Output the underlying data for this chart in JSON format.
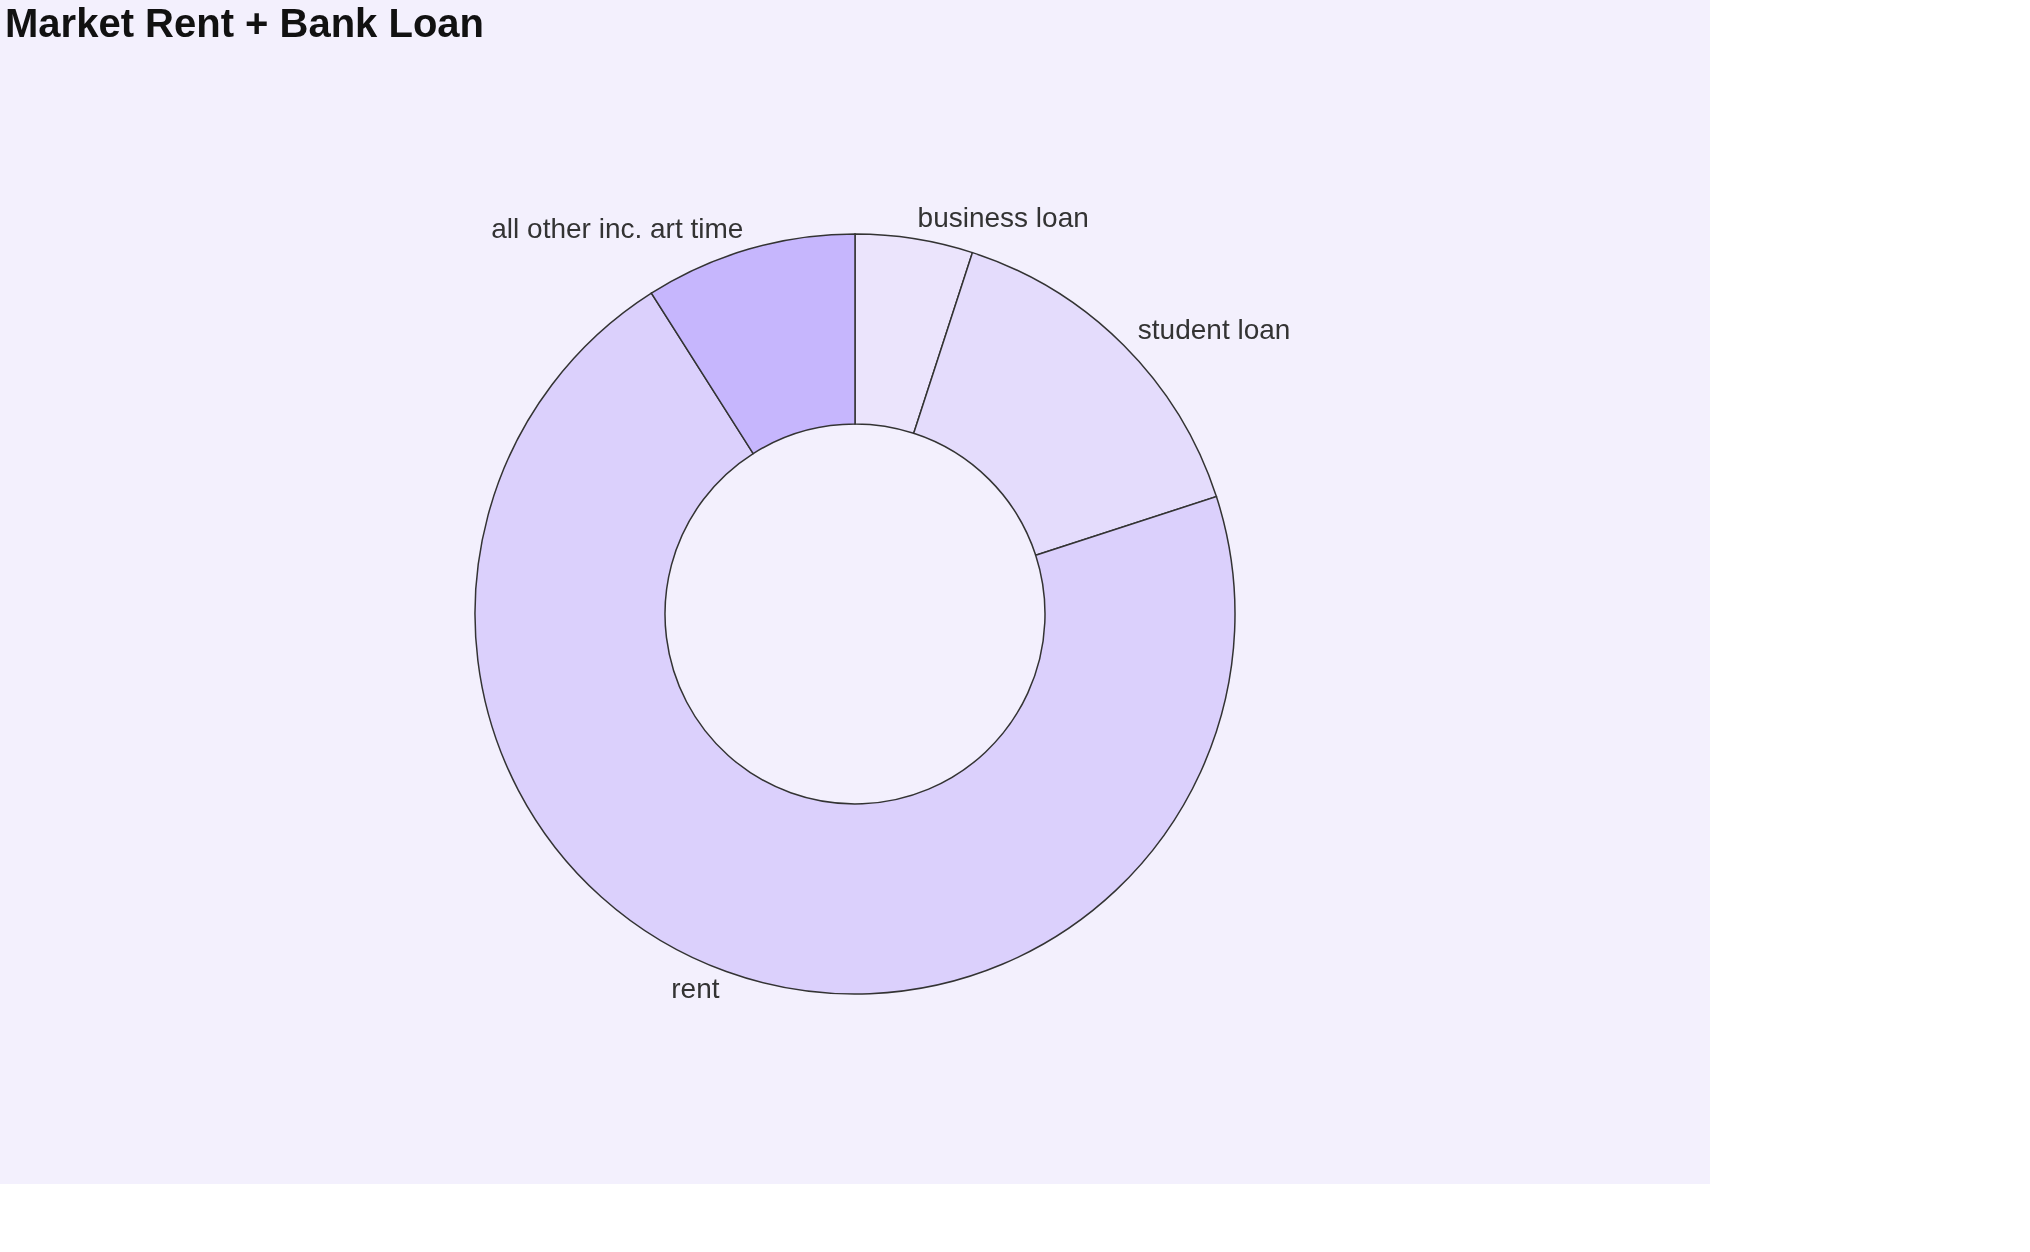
{
  "chart_data": {
    "type": "donut",
    "title": "Market Rent + Bank Loan",
    "categories": [
      "business loan",
      "student loan",
      "rent",
      "all other inc. art time"
    ],
    "values": [
      5,
      15,
      71,
      9
    ],
    "colors": [
      "#ebe4fc",
      "#e4dcfc",
      "#dbd0fc",
      "#c6b6fd"
    ]
  }
}
